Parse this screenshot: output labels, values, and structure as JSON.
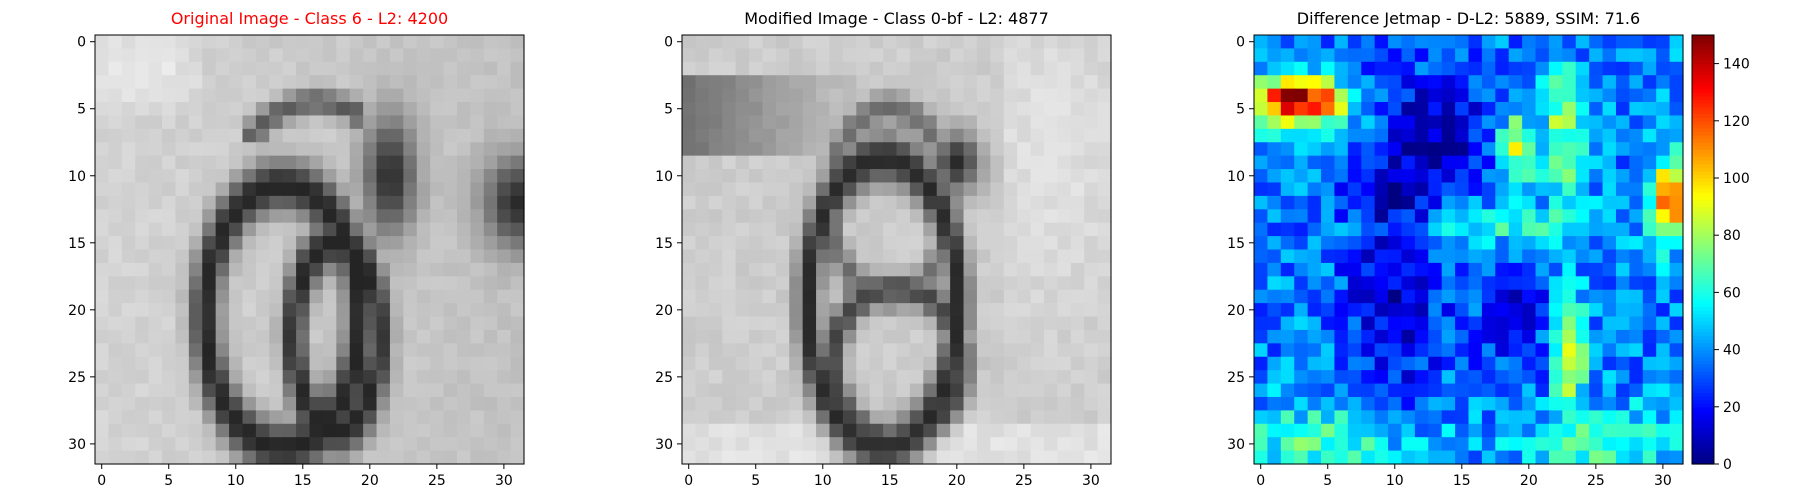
{
  "chart_data": [
    {
      "type": "heatmap",
      "title": "Original Image - Class 6 - L2: 4200",
      "title_color": "#ff0000",
      "colormap": "gray",
      "grid_size": [
        32,
        32
      ],
      "x_ticks": [
        0,
        5,
        10,
        15,
        20,
        25,
        30
      ],
      "y_ticks": [
        0,
        5,
        10,
        15,
        20,
        25,
        30
      ],
      "xlim": [
        -0.5,
        31.5
      ],
      "ylim": [
        31.5,
        -0.5
      ],
      "content": "grayscale digit 6 centered, plus partial dark stroke at right edge"
    },
    {
      "type": "heatmap",
      "title": "Modified Image - Class 0-bf - L2: 4877",
      "title_color": "#000000",
      "colormap": "gray",
      "grid_size": [
        32,
        32
      ],
      "x_ticks": [
        0,
        5,
        10,
        15,
        20,
        25,
        30
      ],
      "y_ticks": [
        0,
        5,
        10,
        15,
        20,
        25,
        30
      ],
      "xlim": [
        -0.5,
        31.5
      ],
      "ylim": [
        31.5,
        -0.5
      ],
      "content": "grayscale digit resembling 8/0 with a top-left darker band"
    },
    {
      "type": "heatmap",
      "title": "Difference Jetmap - D-L2: 5889, SSIM: 71.6",
      "title_color": "#000000",
      "colormap": "jet",
      "grid_size": [
        32,
        32
      ],
      "x_ticks": [
        0,
        5,
        10,
        15,
        20,
        25,
        30
      ],
      "y_ticks": [
        0,
        5,
        10,
        15,
        20,
        25,
        30
      ],
      "xlim": [
        -0.5,
        31.5
      ],
      "ylim": [
        31.5,
        -0.5
      ],
      "colorbar": {
        "min": 0,
        "max": 150,
        "ticks": [
          0,
          20,
          40,
          60,
          80,
          100,
          120,
          140
        ]
      }
    }
  ]
}
